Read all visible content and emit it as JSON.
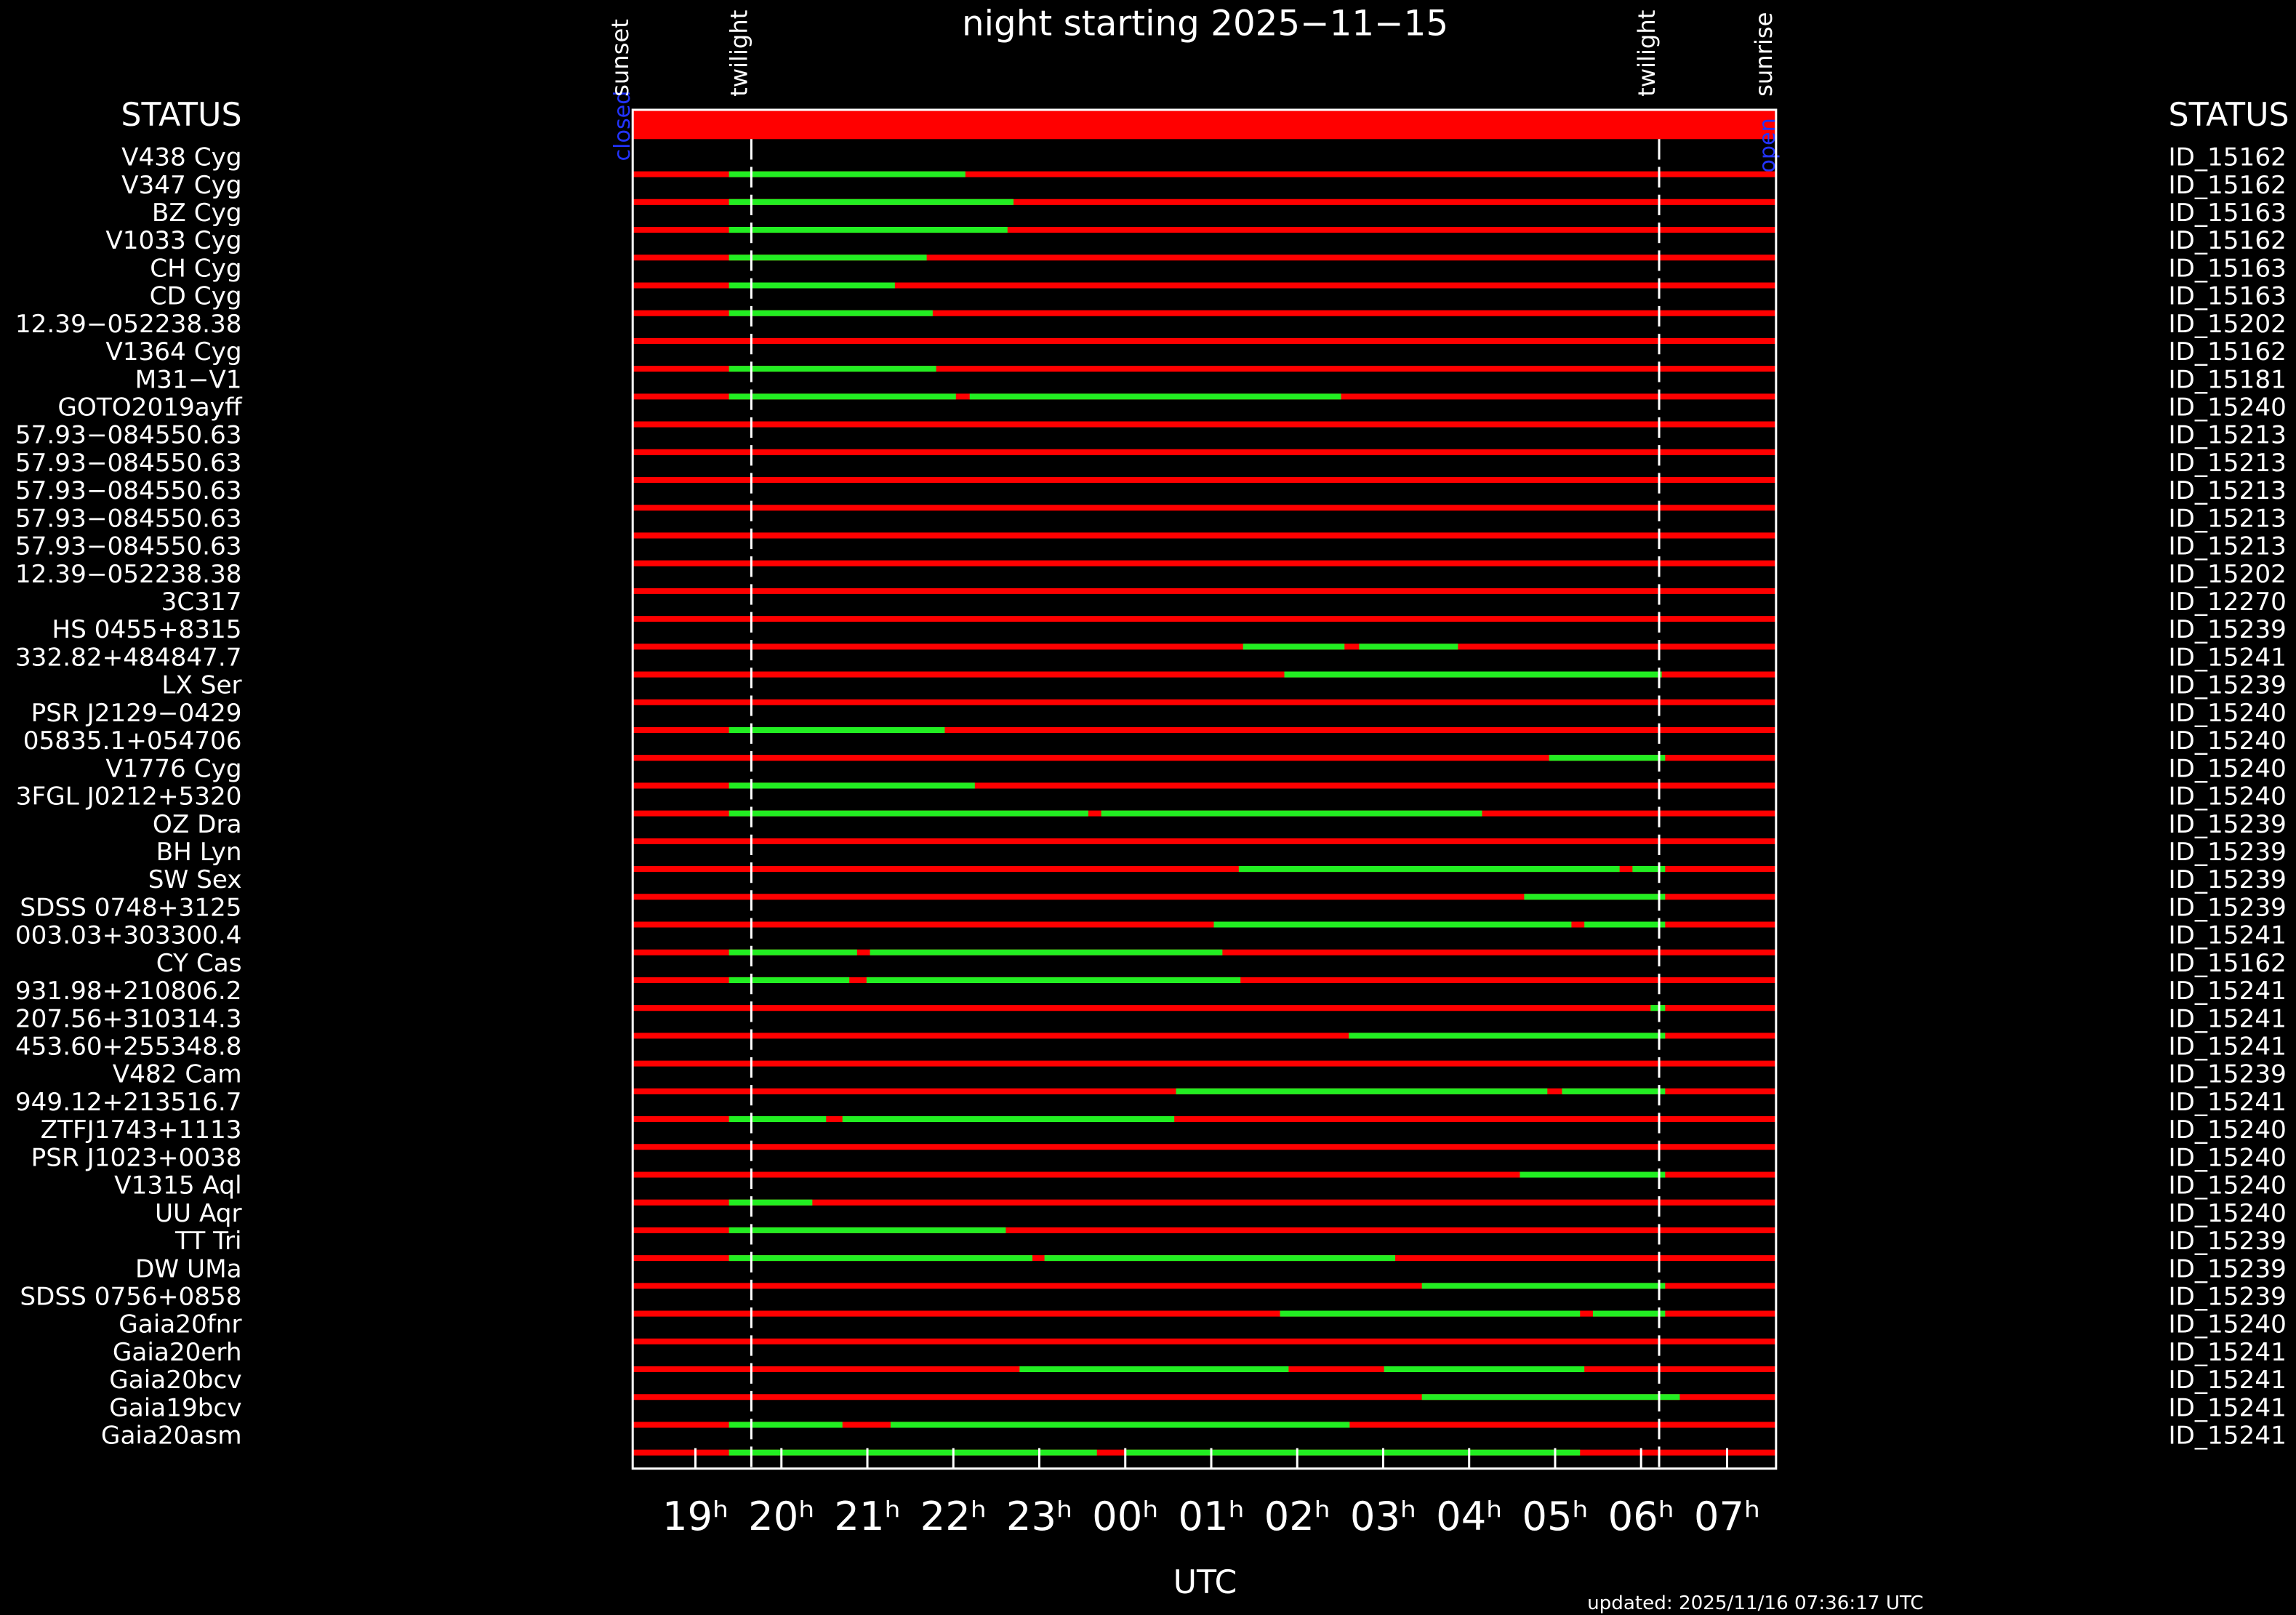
{
  "chart_data": {
    "type": "timeline",
    "title": "night starting 2025−11−15",
    "xlabel": "UTC",
    "updated": "updated: 2025/11/16 07:36:17 UTC",
    "left_header": "STATUS",
    "right_header": "STATUS",
    "status_start": "closed",
    "status_end": "open",
    "xlim": [
      18.27,
      31.57
    ],
    "xticks": [
      {
        "value": 19,
        "label": "19ʰ"
      },
      {
        "value": 20,
        "label": "20ʰ"
      },
      {
        "value": 21,
        "label": "21ʰ"
      },
      {
        "value": 22,
        "label": "22ʰ"
      },
      {
        "value": 23,
        "label": "23ʰ"
      },
      {
        "value": 24,
        "label": "00ʰ"
      },
      {
        "value": 25,
        "label": "01ʰ"
      },
      {
        "value": 26,
        "label": "02ʰ"
      },
      {
        "value": 27,
        "label": "03ʰ"
      },
      {
        "value": 28,
        "label": "04ʰ"
      },
      {
        "value": 29,
        "label": "05ʰ"
      },
      {
        "value": 30,
        "label": "06ʰ"
      },
      {
        "value": 31,
        "label": "07ʰ"
      }
    ],
    "events": [
      {
        "label": "sunset",
        "value": 18.27,
        "line": false
      },
      {
        "label": "twilight",
        "value": 19.65,
        "line": true
      },
      {
        "label": "twilight",
        "value": 30.21,
        "line": true
      },
      {
        "label": "sunrise",
        "value": 31.57,
        "line": false
      }
    ],
    "background_color": "#ff0000",
    "window_color": "#22ee22",
    "rows": [
      {
        "name": "V438 Cyg",
        "id": "ID_15162",
        "windows": [
          [
            19.39,
            22.14
          ]
        ]
      },
      {
        "name": "V347 Cyg",
        "id": "ID_15162",
        "windows": [
          [
            19.39,
            22.7
          ]
        ]
      },
      {
        "name": "BZ Cyg",
        "id": "ID_15163",
        "windows": [
          [
            19.39,
            22.63
          ]
        ]
      },
      {
        "name": "V1033 Cyg",
        "id": "ID_15162",
        "windows": [
          [
            19.39,
            21.69
          ]
        ]
      },
      {
        "name": "CH Cyg",
        "id": "ID_15163",
        "windows": [
          [
            19.39,
            21.32
          ]
        ]
      },
      {
        "name": "CD Cyg",
        "id": "ID_15163",
        "windows": [
          [
            19.39,
            21.76
          ]
        ]
      },
      {
        "name": "12.39−052238.38",
        "id": "ID_15202",
        "windows": []
      },
      {
        "name": "V1364 Cyg",
        "id": "ID_15162",
        "windows": [
          [
            19.39,
            21.8
          ]
        ]
      },
      {
        "name": "M31−V1",
        "id": "ID_15181",
        "windows": [
          [
            19.39,
            22.03
          ],
          [
            22.19,
            26.51
          ]
        ]
      },
      {
        "name": "GOTO2019ayff",
        "id": "ID_15240",
        "windows": []
      },
      {
        "name": "57.93−084550.63",
        "id": "ID_15213",
        "windows": []
      },
      {
        "name": "57.93−084550.63",
        "id": "ID_15213",
        "windows": []
      },
      {
        "name": "57.93−084550.63",
        "id": "ID_15213",
        "windows": []
      },
      {
        "name": "57.93−084550.63",
        "id": "ID_15213",
        "windows": []
      },
      {
        "name": "57.93−084550.63",
        "id": "ID_15213",
        "windows": []
      },
      {
        "name": "12.39−052238.38",
        "id": "ID_15202",
        "windows": []
      },
      {
        "name": "3C317",
        "id": "ID_12270",
        "windows": []
      },
      {
        "name": "HS 0455+8315",
        "id": "ID_15239",
        "windows": [
          [
            25.37,
            26.55
          ],
          [
            26.72,
            27.87
          ]
        ]
      },
      {
        "name": "332.82+484847.7",
        "id": "ID_15241",
        "windows": [
          [
            25.85,
            30.24
          ]
        ]
      },
      {
        "name": "LX Ser",
        "id": "ID_15239",
        "windows": []
      },
      {
        "name": "PSR J2129−0429",
        "id": "ID_15240",
        "windows": [
          [
            19.39,
            21.9
          ]
        ]
      },
      {
        "name": "05835.1+054706",
        "id": "ID_15240",
        "windows": [
          [
            28.93,
            30.28
          ]
        ]
      },
      {
        "name": "V1776 Cyg",
        "id": "ID_15240",
        "windows": [
          [
            19.39,
            22.25
          ]
        ]
      },
      {
        "name": "3FGL J0212+5320",
        "id": "ID_15240",
        "windows": [
          [
            19.39,
            23.57
          ],
          [
            23.72,
            28.15
          ]
        ]
      },
      {
        "name": "OZ Dra",
        "id": "ID_15239",
        "windows": []
      },
      {
        "name": "BH Lyn",
        "id": "ID_15239",
        "windows": [
          [
            25.32,
            29.75
          ],
          [
            29.9,
            30.28
          ]
        ]
      },
      {
        "name": "SW Sex",
        "id": "ID_15239",
        "windows": [
          [
            28.64,
            30.28
          ]
        ]
      },
      {
        "name": "SDSS 0748+3125",
        "id": "ID_15239",
        "windows": [
          [
            25.03,
            29.19
          ],
          [
            29.34,
            30.28
          ]
        ]
      },
      {
        "name": "003.03+303300.4",
        "id": "ID_15241",
        "windows": [
          [
            19.39,
            20.88
          ],
          [
            21.03,
            25.13
          ]
        ]
      },
      {
        "name": "CY Cas",
        "id": "ID_15162",
        "windows": [
          [
            19.39,
            20.79
          ],
          [
            20.99,
            25.34
          ]
        ]
      },
      {
        "name": "931.98+210806.2",
        "id": "ID_15241",
        "windows": [
          [
            30.11,
            30.28
          ]
        ]
      },
      {
        "name": "207.56+310314.3",
        "id": "ID_15241",
        "windows": [
          [
            26.6,
            30.28
          ]
        ]
      },
      {
        "name": "453.60+255348.8",
        "id": "ID_15241",
        "windows": []
      },
      {
        "name": "V482 Cam",
        "id": "ID_15239",
        "windows": [
          [
            24.59,
            28.91
          ],
          [
            29.08,
            30.28
          ]
        ]
      },
      {
        "name": "949.12+213516.7",
        "id": "ID_15241",
        "windows": [
          [
            19.39,
            20.52
          ],
          [
            20.71,
            24.57
          ]
        ]
      },
      {
        "name": "ZTFJ1743+1113",
        "id": "ID_15240",
        "windows": []
      },
      {
        "name": "PSR J1023+0038",
        "id": "ID_15240",
        "windows": [
          [
            28.59,
            30.28
          ]
        ]
      },
      {
        "name": "V1315 Aql",
        "id": "ID_15240",
        "windows": [
          [
            19.39,
            20.36
          ]
        ]
      },
      {
        "name": "UU Aqr",
        "id": "ID_15240",
        "windows": [
          [
            19.39,
            22.61
          ]
        ]
      },
      {
        "name": "TT Tri",
        "id": "ID_15239",
        "windows": [
          [
            19.39,
            22.92
          ],
          [
            23.06,
            27.14
          ]
        ]
      },
      {
        "name": "DW UMa",
        "id": "ID_15239",
        "windows": [
          [
            27.45,
            30.28
          ]
        ]
      },
      {
        "name": "SDSS 0756+0858",
        "id": "ID_15239",
        "windows": [
          [
            25.8,
            29.29
          ],
          [
            29.44,
            30.28
          ]
        ]
      },
      {
        "name": "Gaia20fnr",
        "id": "ID_15240",
        "windows": []
      },
      {
        "name": "Gaia20erh",
        "id": "ID_15241",
        "windows": [
          [
            22.77,
            25.9
          ],
          [
            27.01,
            29.34
          ]
        ]
      },
      {
        "name": "Gaia20bcv",
        "id": "ID_15241",
        "windows": [
          [
            27.45,
            30.45
          ]
        ]
      },
      {
        "name": "Gaia19bcv",
        "id": "ID_15241",
        "windows": [
          [
            19.39,
            20.71
          ],
          [
            21.27,
            26.61
          ]
        ]
      },
      {
        "name": "Gaia20asm",
        "id": "ID_15241",
        "windows": [
          [
            19.39,
            23.67
          ],
          [
            23.99,
            29.29
          ]
        ]
      }
    ]
  }
}
